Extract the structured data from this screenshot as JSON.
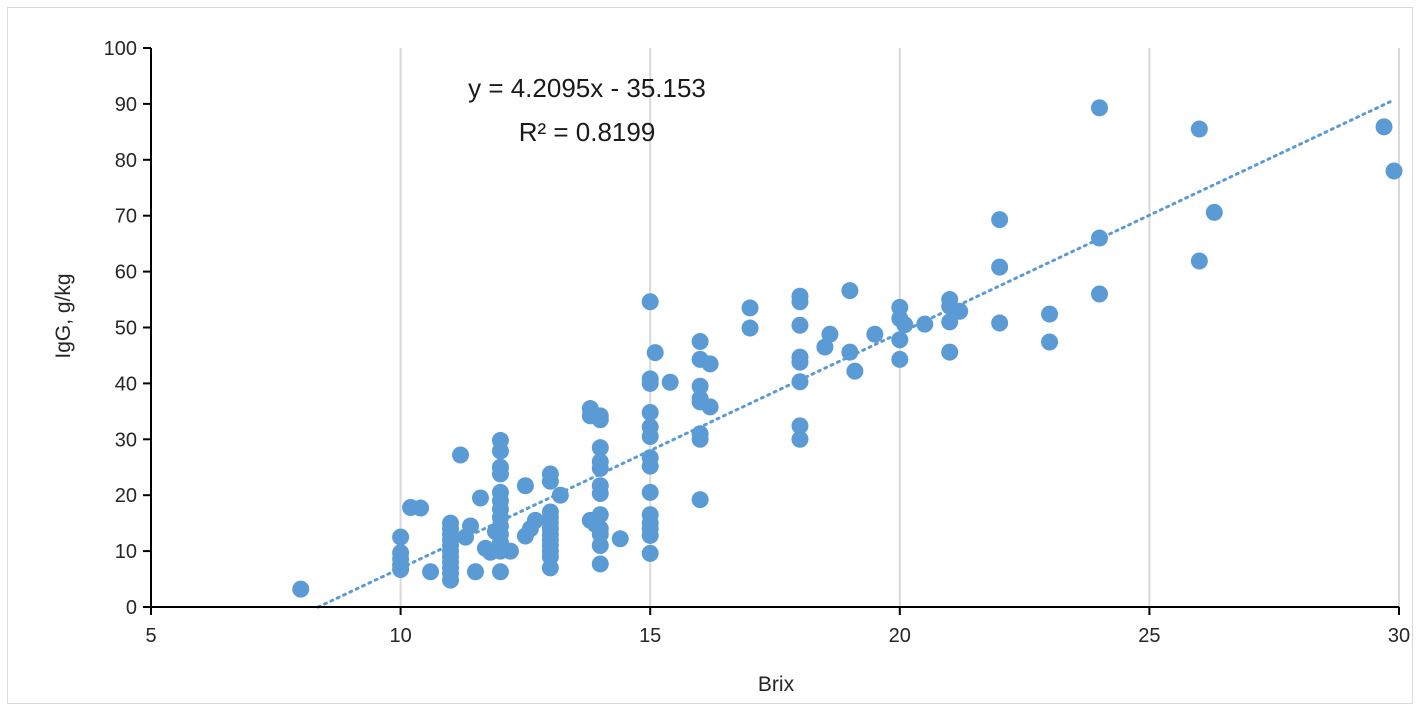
{
  "chart_data": {
    "type": "scatter",
    "title": "",
    "xlabel": "Brix",
    "ylabel": "IgG, g/kg",
    "xlim": [
      5,
      30
    ],
    "ylim": [
      0,
      100
    ],
    "xticks": [
      5,
      10,
      15,
      20,
      25,
      30
    ],
    "yticks": [
      0,
      10,
      20,
      30,
      40,
      50,
      60,
      70,
      80,
      90,
      100
    ],
    "grid": "vertical major gridlines",
    "legend": "none",
    "colors": {
      "marker": "#5b9bd5",
      "trendline": "#5b9bd5",
      "grid": "#d9d9d9",
      "axis": "#000000"
    },
    "trendline": {
      "type": "linear",
      "slope": 4.2095,
      "intercept": -35.153,
      "style": "dotted",
      "x_range": [
        8.35,
        29.85
      ]
    },
    "annotations": {
      "equation": "y = 4.2095x - 35.153",
      "r_squared": "R² = 0.8199"
    },
    "points": [
      [
        8,
        3.2
      ],
      [
        10,
        12.5
      ],
      [
        10,
        9.7
      ],
      [
        10,
        8.6
      ],
      [
        10,
        7.5
      ],
      [
        10,
        6.7
      ],
      [
        10.2,
        17.8
      ],
      [
        10.4,
        17.7
      ],
      [
        10.6,
        6.3
      ],
      [
        11,
        15
      ],
      [
        11,
        14
      ],
      [
        11,
        13
      ],
      [
        11,
        12
      ],
      [
        11,
        11
      ],
      [
        11,
        10
      ],
      [
        11,
        9
      ],
      [
        11,
        8
      ],
      [
        11,
        7
      ],
      [
        11,
        6
      ],
      [
        11,
        4.8
      ],
      [
        11.2,
        27.2
      ],
      [
        11.3,
        12.5
      ],
      [
        11.4,
        14.5
      ],
      [
        11.5,
        6.3
      ],
      [
        11.6,
        19.5
      ],
      [
        11.7,
        10.5
      ],
      [
        11.8,
        9.8
      ],
      [
        11.9,
        13.5
      ],
      [
        12,
        29.8
      ],
      [
        12,
        27.9
      ],
      [
        12,
        25
      ],
      [
        12,
        23.8
      ],
      [
        12,
        20.5
      ],
      [
        12,
        19
      ],
      [
        12,
        17.5
      ],
      [
        12,
        16
      ],
      [
        12,
        14.5
      ],
      [
        12,
        13
      ],
      [
        12,
        11.5
      ],
      [
        12,
        10
      ],
      [
        12,
        6.3
      ],
      [
        12.2,
        10
      ],
      [
        12.5,
        21.7
      ],
      [
        12.5,
        12.7
      ],
      [
        12.6,
        14
      ],
      [
        12.7,
        15.5
      ],
      [
        13,
        23.8
      ],
      [
        13,
        22.5
      ],
      [
        13,
        17
      ],
      [
        13,
        16
      ],
      [
        13,
        15
      ],
      [
        13,
        14
      ],
      [
        13,
        13
      ],
      [
        13,
        12
      ],
      [
        13,
        11
      ],
      [
        13,
        10
      ],
      [
        13,
        9
      ],
      [
        13,
        7
      ],
      [
        13.2,
        20
      ],
      [
        13.8,
        35.5
      ],
      [
        13.8,
        34.2
      ],
      [
        13.8,
        15.5
      ],
      [
        13.9,
        14.8
      ],
      [
        14,
        34.2
      ],
      [
        14,
        33.5
      ],
      [
        14,
        28.5
      ],
      [
        14,
        26
      ],
      [
        14,
        24.8
      ],
      [
        14,
        21.7
      ],
      [
        14,
        20.3
      ],
      [
        14,
        16.5
      ],
      [
        14,
        14
      ],
      [
        14,
        13
      ],
      [
        14,
        11
      ],
      [
        14,
        7.7
      ],
      [
        14.4,
        12.2
      ],
      [
        15,
        54.6
      ],
      [
        15,
        40.8
      ],
      [
        15,
        40
      ],
      [
        15,
        34.8
      ],
      [
        15,
        32.2
      ],
      [
        15,
        30.5
      ],
      [
        15,
        26.7
      ],
      [
        15,
        25.2
      ],
      [
        15,
        20.5
      ],
      [
        15,
        16.5
      ],
      [
        15,
        15
      ],
      [
        15,
        14
      ],
      [
        15,
        12.8
      ],
      [
        15,
        9.6
      ],
      [
        15.1,
        45.5
      ],
      [
        15.4,
        40.2
      ],
      [
        16,
        47.5
      ],
      [
        16,
        44.3
      ],
      [
        16,
        39.5
      ],
      [
        16,
        37.3
      ],
      [
        16,
        36.7
      ],
      [
        16,
        31
      ],
      [
        16,
        30
      ],
      [
        16,
        19.2
      ],
      [
        16.2,
        43.5
      ],
      [
        16.2,
        35.8
      ],
      [
        17,
        53.5
      ],
      [
        17,
        49.9
      ],
      [
        18,
        55.6
      ],
      [
        18,
        54.6
      ],
      [
        18,
        50.4
      ],
      [
        18,
        44.7
      ],
      [
        18,
        43.8
      ],
      [
        18,
        40.3
      ],
      [
        18,
        32.4
      ],
      [
        18,
        30
      ],
      [
        18.5,
        46.5
      ],
      [
        18.6,
        48.8
      ],
      [
        19,
        56.6
      ],
      [
        19,
        45.6
      ],
      [
        19.1,
        42.2
      ],
      [
        19.5,
        48.8
      ],
      [
        20,
        53.6
      ],
      [
        20,
        51.6
      ],
      [
        20,
        47.8
      ],
      [
        20,
        44.3
      ],
      [
        20.1,
        50.5
      ],
      [
        20.5,
        50.6
      ],
      [
        21,
        55
      ],
      [
        21,
        53.8
      ],
      [
        21,
        51
      ],
      [
        21,
        45.6
      ],
      [
        21.2,
        52.9
      ],
      [
        22,
        69.3
      ],
      [
        22,
        60.8
      ],
      [
        22,
        50.8
      ],
      [
        23,
        52.4
      ],
      [
        23,
        47.4
      ],
      [
        24,
        89.3
      ],
      [
        24,
        66
      ],
      [
        24,
        56
      ],
      [
        26,
        85.5
      ],
      [
        26,
        61.9
      ],
      [
        26.3,
        70.6
      ],
      [
        29.7,
        85.9
      ],
      [
        29.9,
        78
      ]
    ]
  }
}
